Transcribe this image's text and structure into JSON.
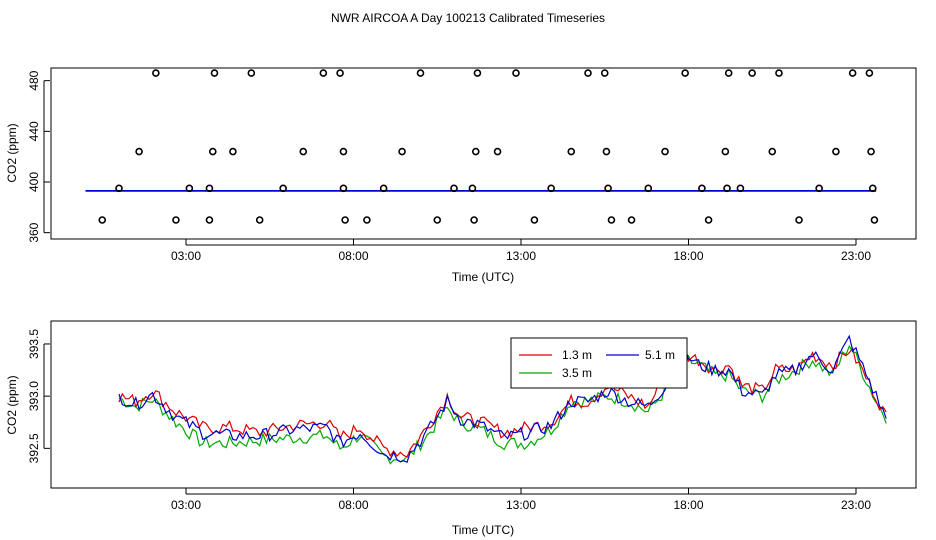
{
  "title": "NWR AIRCOA A  Day 100213  Calibrated Timeseries",
  "colors": {
    "s13": "#dd0000",
    "s35": "#00aa00",
    "s51": "#0000cc",
    "axis": "#000000"
  },
  "chart_data": [
    {
      "type": "scatter",
      "xlabel": "Time (UTC)",
      "ylabel": "CO2 (ppm)",
      "xlim": [
        0,
        24.5
      ],
      "ylim": [
        355,
        490
      ],
      "x_ticks": [
        3,
        8,
        13,
        18,
        23
      ],
      "x_tick_labels": [
        "03:00",
        "08:00",
        "13:00",
        "18:00",
        "23:00"
      ],
      "y_ticks": [
        360,
        400,
        440,
        480
      ],
      "y_tick_labels": [
        "360",
        "400",
        "440",
        "480"
      ],
      "points": [
        [
          0.5,
          370
        ],
        [
          1.0,
          395
        ],
        [
          1.6,
          424
        ],
        [
          2.1,
          486
        ],
        [
          2.7,
          370
        ],
        [
          3.1,
          395
        ],
        [
          3.7,
          395
        ],
        [
          3.7,
          370
        ],
        [
          3.8,
          424
        ],
        [
          3.85,
          486
        ],
        [
          4.4,
          424
        ],
        [
          4.95,
          486
        ],
        [
          5.2,
          370
        ],
        [
          5.9,
          395
        ],
        [
          6.5,
          424
        ],
        [
          7.1,
          486
        ],
        [
          7.6,
          486
        ],
        [
          7.7,
          424
        ],
        [
          7.7,
          395
        ],
        [
          7.75,
          370
        ],
        [
          8.4,
          370
        ],
        [
          8.9,
          395
        ],
        [
          9.45,
          424
        ],
        [
          10.0,
          486
        ],
        [
          10.5,
          370
        ],
        [
          11.0,
          395
        ],
        [
          11.55,
          395
        ],
        [
          11.6,
          370
        ],
        [
          11.65,
          424
        ],
        [
          11.7,
          486
        ],
        [
          12.3,
          424
        ],
        [
          12.85,
          486
        ],
        [
          13.4,
          370
        ],
        [
          13.9,
          395
        ],
        [
          14.5,
          424
        ],
        [
          15.0,
          486
        ],
        [
          15.5,
          486
        ],
        [
          15.55,
          424
        ],
        [
          15.6,
          395
        ],
        [
          15.7,
          370
        ],
        [
          16.3,
          370
        ],
        [
          16.8,
          395
        ],
        [
          17.3,
          424
        ],
        [
          17.9,
          486
        ],
        [
          18.4,
          395
        ],
        [
          18.6,
          370
        ],
        [
          19.1,
          424
        ],
        [
          19.15,
          395
        ],
        [
          19.2,
          486
        ],
        [
          19.55,
          395
        ],
        [
          19.9,
          486
        ],
        [
          20.5,
          424
        ],
        [
          20.7,
          486
        ],
        [
          21.3,
          370
        ],
        [
          21.9,
          395
        ],
        [
          22.4,
          424
        ],
        [
          22.9,
          486
        ],
        [
          23.4,
          486
        ],
        [
          23.45,
          424
        ],
        [
          23.5,
          395
        ],
        [
          23.55,
          370
        ]
      ],
      "line_level": 393
    },
    {
      "type": "line",
      "xlabel": "Time (UTC)",
      "ylabel": "CO2 (ppm)",
      "xlim": [
        0,
        24.5
      ],
      "ylim": [
        392.12,
        393.72
      ],
      "x_ticks": [
        3,
        8,
        13,
        18,
        23
      ],
      "x_tick_labels": [
        "03:00",
        "08:00",
        "13:00",
        "18:00",
        "23:00"
      ],
      "y_ticks": [
        392.5,
        393.0,
        393.5
      ],
      "y_tick_labels": [
        "392.5",
        "393.0",
        "393.5"
      ],
      "legend_position": "top-right",
      "anchors": {
        "x": [
          1.0,
          1.5,
          2.0,
          2.7,
          3.5,
          4.3,
          5.2,
          6.2,
          7.2,
          7.6,
          8.2,
          8.9,
          9.6,
          10.2,
          10.8,
          11.2,
          11.8,
          12.5,
          13.2,
          13.9,
          14.5,
          15.0,
          15.6,
          16.2,
          16.8,
          17.3,
          17.9,
          18.3,
          18.8,
          19.2,
          19.6,
          20.2,
          20.6,
          21.2,
          21.7,
          22.3,
          22.8,
          23.1,
          23.6,
          23.9
        ],
        "s13": [
          393.0,
          392.95,
          393.05,
          392.85,
          392.7,
          392.7,
          392.65,
          392.72,
          392.75,
          392.6,
          392.7,
          392.5,
          392.45,
          392.7,
          393.0,
          392.8,
          392.75,
          392.65,
          392.7,
          392.75,
          392.95,
          392.95,
          393.1,
          393.0,
          392.9,
          393.2,
          393.4,
          393.35,
          393.25,
          393.3,
          393.1,
          393.05,
          393.25,
          393.25,
          393.4,
          393.3,
          393.45,
          393.3,
          393.0,
          392.8
        ],
        "s35": [
          392.98,
          392.9,
          392.97,
          392.75,
          392.55,
          392.55,
          392.58,
          392.6,
          392.62,
          392.5,
          392.63,
          392.42,
          392.4,
          392.62,
          392.88,
          392.75,
          392.68,
          392.55,
          392.55,
          392.68,
          392.95,
          392.95,
          393.0,
          392.95,
          392.85,
          393.05,
          393.35,
          393.3,
          393.2,
          393.2,
          393.05,
          393.0,
          393.15,
          393.25,
          393.35,
          393.2,
          393.5,
          393.3,
          392.95,
          392.8
        ],
        "s51": [
          393.0,
          392.92,
          393.02,
          392.8,
          392.65,
          392.62,
          392.62,
          392.68,
          392.7,
          392.55,
          392.65,
          392.45,
          392.42,
          392.65,
          392.95,
          392.78,
          392.72,
          392.6,
          392.65,
          392.72,
          392.95,
          392.95,
          393.05,
          392.95,
          392.9,
          393.1,
          393.4,
          393.3,
          393.25,
          393.25,
          393.05,
          393.0,
          393.2,
          393.25,
          393.4,
          393.25,
          393.55,
          393.35,
          393.0,
          392.78
        ]
      },
      "series": [
        {
          "name": "1.3 m",
          "key": "s13",
          "color": "#dd0000"
        },
        {
          "name": "3.5 m",
          "key": "s35",
          "color": "#00aa00"
        },
        {
          "name": "5.1 m",
          "key": "s51",
          "color": "#0000cc"
        }
      ]
    }
  ]
}
